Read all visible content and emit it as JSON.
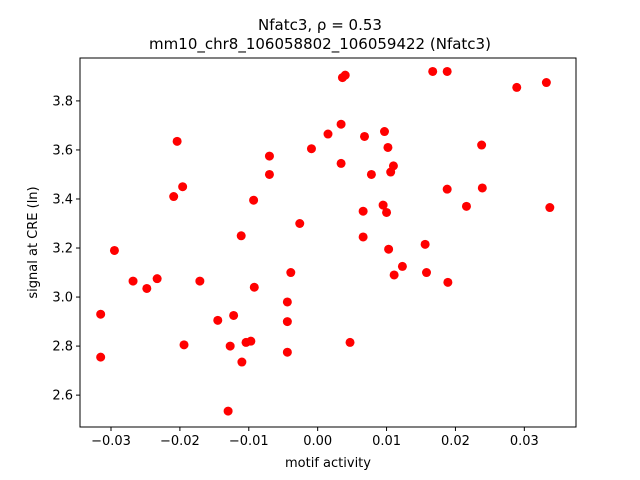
{
  "chart_data": {
    "type": "scatter",
    "title_line1": "Nfatc3, ρ = 0.53",
    "title_line2": "mm10_chr8_106058802_106059422 (Nfatc3)",
    "xlabel": "motif activity",
    "ylabel": "signal at CRE (ln)",
    "xlim": [
      -0.0345,
      0.0375
    ],
    "ylim": [
      2.47,
      3.975
    ],
    "x_ticks": [
      -0.03,
      -0.02,
      -0.01,
      0.0,
      0.01,
      0.02,
      0.03
    ],
    "x_tick_labels": [
      "−0.03",
      "−0.02",
      "−0.01",
      "0.00",
      "0.01",
      "0.02",
      "0.03"
    ],
    "y_ticks": [
      2.6,
      2.8,
      3.0,
      3.2,
      3.4,
      3.6,
      3.8
    ],
    "y_tick_labels": [
      "2.6",
      "2.8",
      "3.0",
      "3.2",
      "3.4",
      "3.6",
      "3.8"
    ],
    "marker_color": "#ff0000",
    "grid": false,
    "legend": "none",
    "points": [
      {
        "x": -0.0315,
        "y": 2.93
      },
      {
        "x": -0.0315,
        "y": 2.755
      },
      {
        "x": -0.0295,
        "y": 3.19
      },
      {
        "x": -0.0268,
        "y": 3.065
      },
      {
        "x": -0.0248,
        "y": 3.035
      },
      {
        "x": -0.0233,
        "y": 3.075
      },
      {
        "x": -0.0209,
        "y": 3.41
      },
      {
        "x": -0.0204,
        "y": 3.635
      },
      {
        "x": -0.0196,
        "y": 3.45
      },
      {
        "x": -0.0194,
        "y": 2.805
      },
      {
        "x": -0.0171,
        "y": 3.065
      },
      {
        "x": -0.0145,
        "y": 2.905
      },
      {
        "x": -0.013,
        "y": 2.535
      },
      {
        "x": -0.0127,
        "y": 2.8
      },
      {
        "x": -0.0122,
        "y": 2.925
      },
      {
        "x": -0.0111,
        "y": 3.25
      },
      {
        "x": -0.011,
        "y": 2.735
      },
      {
        "x": -0.0104,
        "y": 2.815
      },
      {
        "x": -0.0097,
        "y": 2.82
      },
      {
        "x": -0.0093,
        "y": 3.395
      },
      {
        "x": -0.0092,
        "y": 3.04
      },
      {
        "x": -0.007,
        "y": 3.575
      },
      {
        "x": -0.007,
        "y": 3.5
      },
      {
        "x": -0.0044,
        "y": 2.98
      },
      {
        "x": -0.0044,
        "y": 2.9
      },
      {
        "x": -0.0044,
        "y": 2.775
      },
      {
        "x": -0.0039,
        "y": 3.1
      },
      {
        "x": -0.0026,
        "y": 3.3
      },
      {
        "x": -0.0009,
        "y": 3.605
      },
      {
        "x": 0.0015,
        "y": 3.665
      },
      {
        "x": 0.0034,
        "y": 3.705
      },
      {
        "x": 0.0034,
        "y": 3.545
      },
      {
        "x": 0.0036,
        "y": 3.895
      },
      {
        "x": 0.004,
        "y": 3.905
      },
      {
        "x": 0.0047,
        "y": 2.815
      },
      {
        "x": 0.0066,
        "y": 3.35
      },
      {
        "x": 0.0066,
        "y": 3.245
      },
      {
        "x": 0.0068,
        "y": 3.655
      },
      {
        "x": 0.0078,
        "y": 3.5
      },
      {
        "x": 0.0095,
        "y": 3.375
      },
      {
        "x": 0.0097,
        "y": 3.675
      },
      {
        "x": 0.01,
        "y": 3.345
      },
      {
        "x": 0.0102,
        "y": 3.61
      },
      {
        "x": 0.0103,
        "y": 3.195
      },
      {
        "x": 0.0106,
        "y": 3.51
      },
      {
        "x": 0.011,
        "y": 3.535
      },
      {
        "x": 0.0111,
        "y": 3.09
      },
      {
        "x": 0.0123,
        "y": 3.125
      },
      {
        "x": 0.0156,
        "y": 3.215
      },
      {
        "x": 0.0158,
        "y": 3.1
      },
      {
        "x": 0.0167,
        "y": 3.92
      },
      {
        "x": 0.0188,
        "y": 3.92
      },
      {
        "x": 0.0188,
        "y": 3.44
      },
      {
        "x": 0.0189,
        "y": 3.06
      },
      {
        "x": 0.0216,
        "y": 3.37
      },
      {
        "x": 0.0238,
        "y": 3.62
      },
      {
        "x": 0.0239,
        "y": 3.445
      },
      {
        "x": 0.0289,
        "y": 3.855
      },
      {
        "x": 0.0332,
        "y": 3.875
      },
      {
        "x": 0.0337,
        "y": 3.365
      }
    ]
  }
}
